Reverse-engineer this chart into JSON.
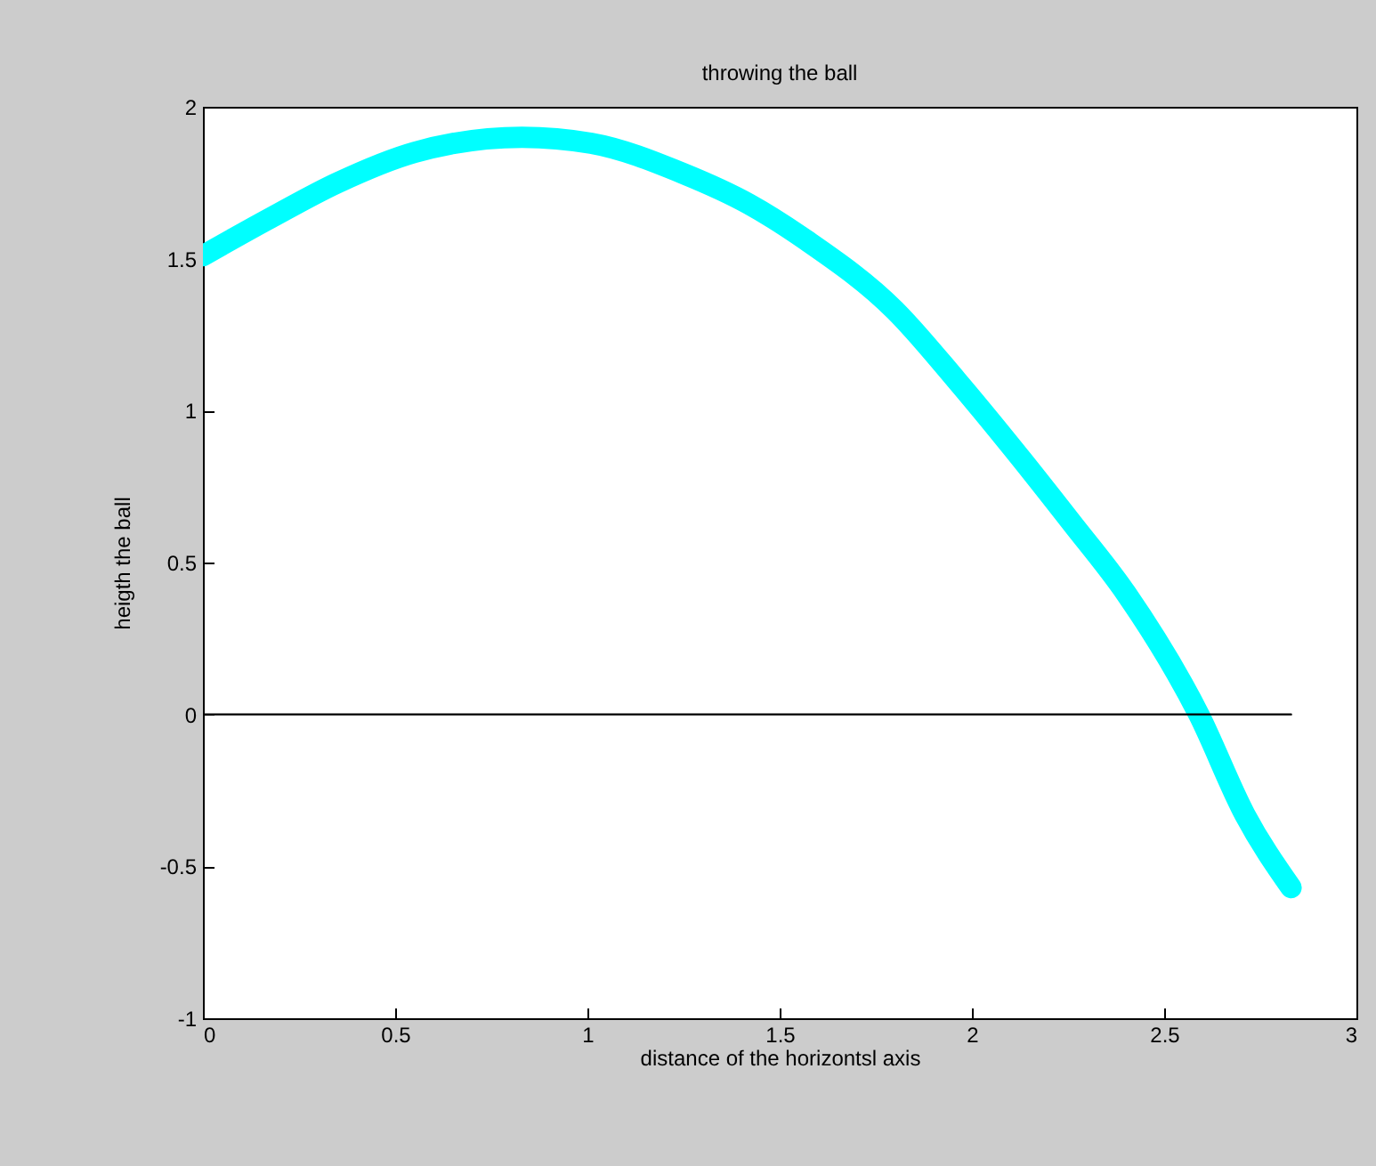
{
  "chart_data": {
    "type": "line",
    "title": "throwing the ball",
    "xlabel": "distance of the horizontsl axis",
    "ylabel": "heigth the ball",
    "xlim": [
      0,
      3
    ],
    "xticks": [
      0,
      0.5,
      1,
      1.5,
      2,
      2.5,
      3
    ],
    "ylim": [
      -1,
      2
    ],
    "yticks": [
      -1,
      -0.5,
      0,
      0.5,
      1,
      1.5,
      2
    ],
    "grid": false,
    "line_style": "solid",
    "series": [
      {
        "color": "#00ffff",
        "x": [
          0,
          0.17,
          0.35,
          0.55,
          0.83,
          1.01,
          1.25,
          1.42,
          1.57,
          1.8,
          1.96,
          2.11,
          2.26,
          2.4,
          2.59,
          2.71,
          2.83
        ],
        "values": [
          1.51,
          1.63,
          1.75,
          1.85,
          1.9,
          1.88,
          1.78,
          1.68,
          1.56,
          1.33,
          1.1,
          0.87,
          0.63,
          0.4,
          0,
          -0.33,
          -0.57
        ]
      },
      {
        "color": "#000000",
        "x": [
          0,
          2.83
        ],
        "values": [
          0,
          0
        ]
      }
    ]
  }
}
